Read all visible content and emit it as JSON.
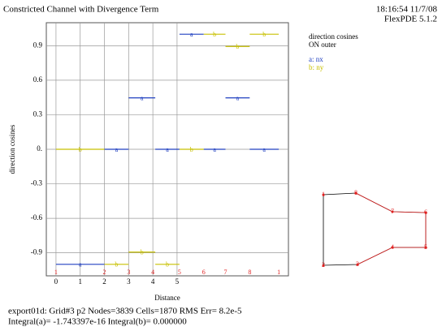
{
  "chart_data": {
    "type": "step-segments",
    "title": "Constricted Channel with Divergence Term",
    "timestamp": "18:16:54 11/7/08",
    "version": "FlexPDE 5.1.2",
    "x_label": "Distance",
    "y_label": "direction cosines",
    "legend_title": [
      "direction cosines",
      "ON outer"
    ],
    "xlim": [
      -0.4,
      9.6
    ],
    "xticks": [
      0,
      1,
      2,
      3,
      4,
      5
    ],
    "ylim": [
      -1.1,
      1.1
    ],
    "yticks": [
      0.9,
      0.6,
      0.3,
      {
        "value": 0,
        "label": "0."
      },
      -0.3,
      -0.6,
      -0.9
    ],
    "grid": true,
    "series": [
      {
        "name": "a: nx",
        "marker_label": "a",
        "color": "#2040c0",
        "segments": [
          {
            "x": [
              0,
              2
            ],
            "value": -1
          },
          {
            "x": [
              2,
              3
            ],
            "value": 0
          },
          {
            "x": [
              3,
              4.1
            ],
            "value": 0.447
          },
          {
            "x": [
              4.1,
              5.1
            ],
            "value": 0
          },
          {
            "x": [
              5.1,
              6.1
            ],
            "value": 1
          },
          {
            "x": [
              6.1,
              7
            ],
            "value": 0
          },
          {
            "x": [
              7,
              8
            ],
            "value": 0.447
          },
          {
            "x": [
              8,
              9.2
            ],
            "value": 0
          }
        ]
      },
      {
        "name": "b: ny",
        "marker_label": "b",
        "color": "#c8c000",
        "segments": [
          {
            "x": [
              0,
              2
            ],
            "value": 0
          },
          {
            "x": [
              2,
              3
            ],
            "value": -1
          },
          {
            "x": [
              3,
              4.1
            ],
            "value": -0.894
          },
          {
            "x": [
              4.1,
              5.1
            ],
            "value": -1
          },
          {
            "x": [
              5.1,
              6.1
            ],
            "value": 0
          },
          {
            "x": [
              6.1,
              7
            ],
            "value": 1
          },
          {
            "x": [
              7,
              8
            ],
            "value": 0.894
          },
          {
            "x": [
              8,
              9.2
            ],
            "value": 1
          }
        ]
      }
    ],
    "boundary_nodes": {
      "labels": [
        "1",
        "2",
        "3",
        "4",
        "5",
        "6",
        "7",
        "8",
        "1"
      ],
      "x": [
        0,
        2,
        3,
        4,
        5.1,
        6.1,
        7,
        8,
        9.2
      ]
    },
    "domain_nodes": [
      "1",
      "2",
      "3",
      "4",
      "5",
      "6",
      "7",
      "8"
    ],
    "footer": [
      "export01d:  Grid#3  p2  Nodes=3839 Cells=1870 RMS Err= 8.2e-5",
      "Integral(a)= -1.743397e-16 Integral(b)=  0.000000"
    ]
  }
}
